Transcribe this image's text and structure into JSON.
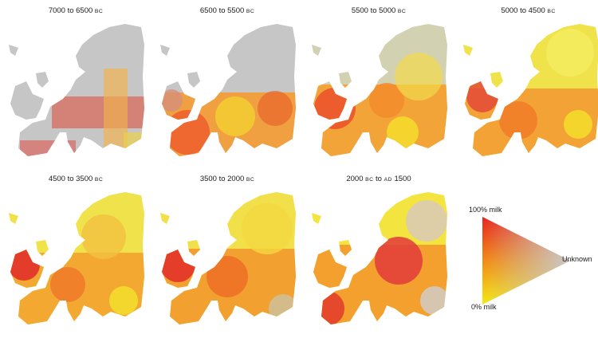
{
  "panels": [
    {
      "label_a": "7000 to 6500 ",
      "label_sc": "BC",
      "label_c": ""
    },
    {
      "label_a": "6500 to 5500 ",
      "label_sc": "BC",
      "label_c": ""
    },
    {
      "label_a": "5500 to 5000 ",
      "label_sc": "BC",
      "label_c": ""
    },
    {
      "label_a": "5000 to 4500 ",
      "label_sc": "BC",
      "label_c": ""
    },
    {
      "label_a": "4500 to 3500 ",
      "label_sc": "BC",
      "label_c": ""
    },
    {
      "label_a": "3500 to 2000 ",
      "label_sc": "BC",
      "label_c": ""
    },
    {
      "label_a": "2000 ",
      "label_sc": "BC",
      "label_c": " to ",
      "label_sc2": "AD",
      "label_d": " 1500"
    }
  ],
  "legend": {
    "top_label": "100% milk",
    "bottom_label": "0% milk",
    "right_label": "Unknown"
  },
  "colors": {
    "milk_high": "#e8201e",
    "milk_mid": "#f28a12",
    "milk_low": "#f5ea10",
    "unknown": "#c8c8c8"
  }
}
